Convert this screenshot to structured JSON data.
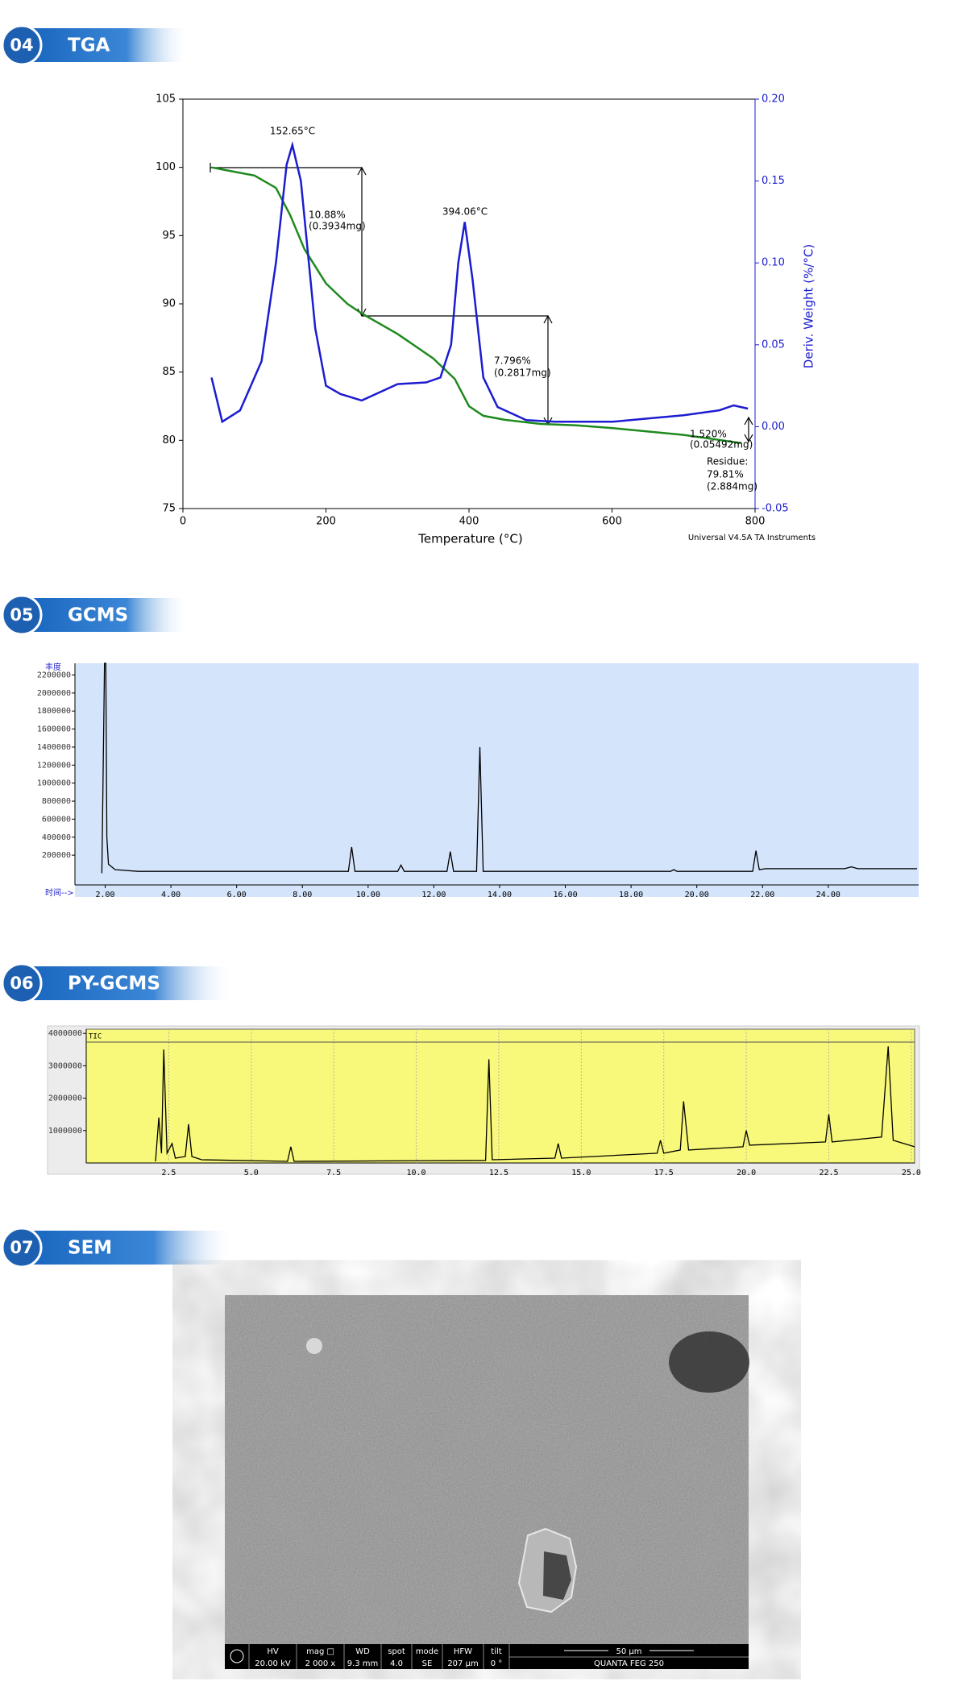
{
  "sections": [
    {
      "number": "04",
      "title": "TGA"
    },
    {
      "number": "05",
      "title": "GCMS"
    },
    {
      "number": "06",
      "title": "PY-GCMS"
    },
    {
      "number": "07",
      "title": "SEM"
    }
  ],
  "chart_data": [
    {
      "type": "line",
      "xlabel": "Temperature (°C)",
      "y2label": "Deriv. Weight (%/°C)",
      "footnote": "Universal V4.5A TA Instruments",
      "xlim": [
        0,
        800
      ],
      "xticks": [
        0,
        200,
        400,
        600,
        800
      ],
      "ylim": [
        75,
        105
      ],
      "yticks": [
        75,
        80,
        85,
        90,
        95,
        100,
        105
      ],
      "y2lim": [
        -0.05,
        0.2
      ],
      "y2ticks": [
        {
          "value": -0.05,
          "label": "-0.05"
        },
        {
          "value": 0,
          "label": "0.00"
        },
        {
          "value": 0.05,
          "label": "0.05"
        },
        {
          "value": 0.1,
          "label": "0.10"
        },
        {
          "value": 0.15,
          "label": "0.15"
        },
        {
          "value": 0.2,
          "label": "0.20"
        }
      ],
      "annotations": [
        "152.65°C",
        "394.06°C",
        "10.88%",
        "(0.3934mg)",
        "7.796%",
        "(0.2817mg)",
        "1.520%",
        "(0.05492mg)",
        "Residue:",
        "79.81%",
        "(2.884mg)"
      ],
      "series": [
        {
          "color": "#1e8a1e",
          "x": [
            40,
            60,
            100,
            130,
            150,
            170,
            200,
            230,
            250,
            300,
            350,
            380,
            400,
            420,
            450,
            500,
            550,
            600,
            700,
            780
          ],
          "values": [
            100,
            99.8,
            99.4,
            98.5,
            96.5,
            94,
            91.5,
            90,
            89.3,
            87.8,
            86,
            84.5,
            82.5,
            81.8,
            81.5,
            81.2,
            81.1,
            80.9,
            80.4,
            79.8
          ]
        },
        {
          "color": "#1c1cd0",
          "axis": "y2",
          "x": [
            40,
            55,
            80,
            110,
            130,
            145,
            153,
            165,
            185,
            200,
            220,
            250,
            280,
            300,
            340,
            360,
            375,
            385,
            394,
            405,
            420,
            440,
            480,
            520,
            600,
            650,
            700,
            750,
            770,
            790
          ],
          "values": [
            0.03,
            0.003,
            0.01,
            0.04,
            0.1,
            0.16,
            0.172,
            0.15,
            0.06,
            0.025,
            0.02,
            0.016,
            0.022,
            0.026,
            0.027,
            0.03,
            0.05,
            0.1,
            0.125,
            0.09,
            0.03,
            0.012,
            0.004,
            0.003,
            0.003,
            0.005,
            0.007,
            0.01,
            0.013,
            0.011
          ]
        }
      ]
    },
    {
      "type": "line",
      "ylabel": "丰度",
      "xlabel": "时间-->",
      "color": "#000000",
      "xlim": [
        1.08,
        26.75
      ],
      "ylim": [
        -130000,
        2330000
      ],
      "xticks": [
        {
          "value": 2,
          "label": "2.00"
        },
        {
          "value": 4,
          "label": "4.00"
        },
        {
          "value": 6,
          "label": "6.00"
        },
        {
          "value": 8,
          "label": "8.00"
        },
        {
          "value": 10,
          "label": "10.00"
        },
        {
          "value": 12,
          "label": "12.00"
        },
        {
          "value": 14,
          "label": "14.00"
        },
        {
          "value": 16,
          "label": "16.00"
        },
        {
          "value": 18,
          "label": "18.00"
        },
        {
          "value": 20,
          "label": "20.00"
        },
        {
          "value": 22,
          "label": "22.00"
        },
        {
          "value": 24,
          "label": "24.00"
        }
      ],
      "yticks": [
        200000,
        400000,
        600000,
        800000,
        1000000,
        1200000,
        1400000,
        1600000,
        1800000,
        2000000,
        2200000
      ],
      "x": [
        1.9,
        1.98,
        2.02,
        2.05,
        2.1,
        2.3,
        3,
        9.4,
        9.5,
        9.6,
        10.9,
        11,
        11.1,
        12.4,
        12.5,
        12.6,
        13.3,
        13.4,
        13.5,
        19.2,
        19.3,
        19.4,
        21.7,
        21.8,
        21.9,
        22.1,
        24.5,
        24.7,
        24.9,
        26.7
      ],
      "values": [
        0,
        2330000,
        2330000,
        400000,
        100000,
        40000,
        20000,
        20000,
        290000,
        20000,
        20000,
        90000,
        20000,
        20000,
        240000,
        20000,
        20000,
        1400000,
        20000,
        20000,
        40000,
        20000,
        20000,
        250000,
        40000,
        50000,
        50000,
        70000,
        50000,
        50000
      ]
    },
    {
      "type": "line",
      "legend": "TIC",
      "color": "#000000",
      "xlim": [
        0,
        25.1
      ],
      "ylim": [
        0,
        4130000
      ],
      "xticks": [
        {
          "value": 2.5,
          "label": "2.5"
        },
        {
          "value": 5,
          "label": "5.0"
        },
        {
          "value": 7.5,
          "label": "7.5"
        },
        {
          "value": 10,
          "label": "10.0"
        },
        {
          "value": 12.5,
          "label": "12.5"
        },
        {
          "value": 15,
          "label": "15.0"
        },
        {
          "value": 17.5,
          "label": "17.5"
        },
        {
          "value": 20,
          "label": "20.0"
        },
        {
          "value": 22.5,
          "label": "22.5"
        },
        {
          "value": 25,
          "label": "25.0"
        }
      ],
      "yticks": [
        1000000,
        2000000,
        3000000,
        4000000
      ],
      "x": [
        2.1,
        2.2,
        2.28,
        2.35,
        2.45,
        2.6,
        2.7,
        3.0,
        3.1,
        3.2,
        3.5,
        6.1,
        6.2,
        6.3,
        12.1,
        12.2,
        12.3,
        14.2,
        14.3,
        14.4,
        17.3,
        17.4,
        17.5,
        18.0,
        18.1,
        18.25,
        19.9,
        20.0,
        20.1,
        22.4,
        22.5,
        22.6,
        24.1,
        24.3,
        24.45,
        25.1
      ],
      "values": [
        50000,
        1400000,
        300000,
        3500000,
        300000,
        600000,
        150000,
        200000,
        1200000,
        200000,
        100000,
        50000,
        500000,
        50000,
        80000,
        3200000,
        100000,
        150000,
        600000,
        150000,
        300000,
        700000,
        300000,
        400000,
        1900000,
        400000,
        500000,
        1000000,
        550000,
        650000,
        1500000,
        650000,
        800000,
        3600000,
        700000,
        500000
      ]
    }
  ],
  "sem": {
    "info_bar": [
      [
        "HV",
        "20.00 kV"
      ],
      [
        "mag □",
        "2 000 x"
      ],
      [
        "WD",
        "9.3 mm"
      ],
      [
        "spot",
        "4.0"
      ],
      [
        "mode",
        "SE"
      ],
      [
        "HFW",
        "207 µm"
      ],
      [
        "tilt",
        "0 °"
      ],
      [
        "50 µm",
        "QUANTA FEG 250"
      ]
    ]
  }
}
